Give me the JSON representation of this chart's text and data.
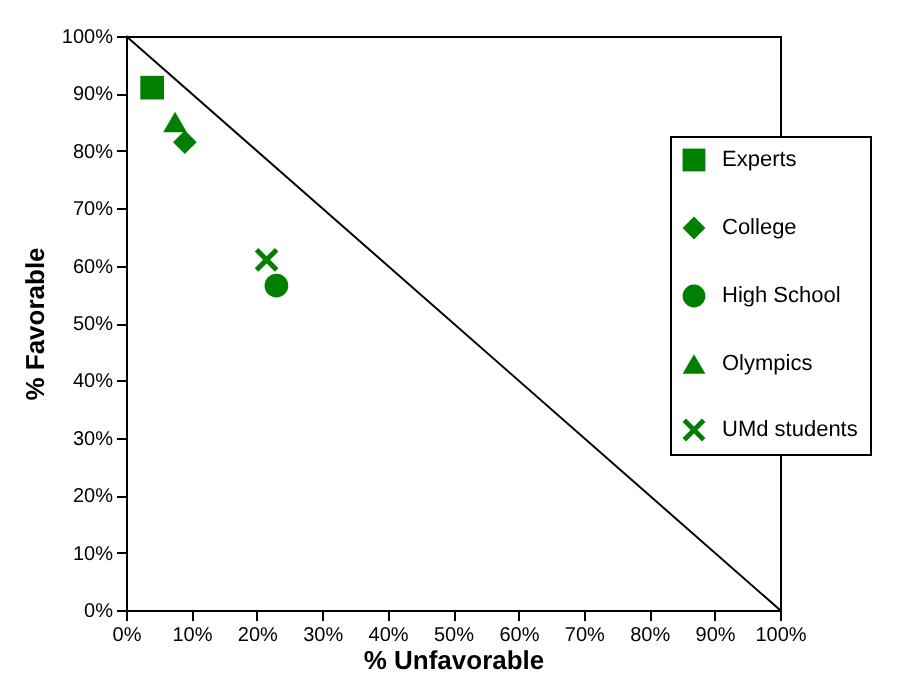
{
  "chart_data": {
    "type": "scatter",
    "xlabel": "% Unfavorable",
    "ylabel": "% Favorable",
    "xlim": [
      0,
      100
    ],
    "ylim": [
      0,
      100
    ],
    "xticks": [
      {
        "value": 0,
        "label": "0%"
      },
      {
        "value": 10,
        "label": "10%"
      },
      {
        "value": 20,
        "label": "20%"
      },
      {
        "value": 30,
        "label": "30%"
      },
      {
        "value": 40,
        "label": "40%"
      },
      {
        "value": 50,
        "label": "50%"
      },
      {
        "value": 60,
        "label": "60%"
      },
      {
        "value": 70,
        "label": "70%"
      },
      {
        "value": 80,
        "label": "80%"
      },
      {
        "value": 90,
        "label": "90%"
      },
      {
        "value": 100,
        "label": "100%"
      }
    ],
    "yticks": [
      {
        "value": 0,
        "label": "0%"
      },
      {
        "value": 10,
        "label": "10%"
      },
      {
        "value": 20,
        "label": "20%"
      },
      {
        "value": 30,
        "label": "30%"
      },
      {
        "value": 40,
        "label": "40%"
      },
      {
        "value": 50,
        "label": "50%"
      },
      {
        "value": 60,
        "label": "60%"
      },
      {
        "value": 70,
        "label": "70%"
      },
      {
        "value": 80,
        "label": "80%"
      },
      {
        "value": 90,
        "label": "90%"
      },
      {
        "value": 100,
        "label": "100%"
      }
    ],
    "grid": false,
    "legend": "right",
    "series": [
      {
        "name": "Experts",
        "color": "#007f00",
        "marker": "square",
        "x": [
          4
        ],
        "values": [
          91
        ]
      },
      {
        "name": "College",
        "color": "#007f00",
        "marker": "diamond",
        "x": [
          9
        ],
        "values": [
          81.5
        ]
      },
      {
        "name": "High School",
        "color": "#007f00",
        "marker": "circle",
        "x": [
          23
        ],
        "values": [
          56.5
        ]
      },
      {
        "name": "Olympics",
        "color": "#007f00",
        "marker": "triangle",
        "x": [
          7.5
        ],
        "values": [
          85
        ]
      },
      {
        "name": "UMd students",
        "color": "#007f00",
        "marker": "cross",
        "x": [
          21.5
        ],
        "values": [
          61
        ]
      },
      {
        "type": "line",
        "color": "#000000",
        "x": [
          0,
          100
        ],
        "values": [
          100,
          0
        ]
      }
    ]
  }
}
